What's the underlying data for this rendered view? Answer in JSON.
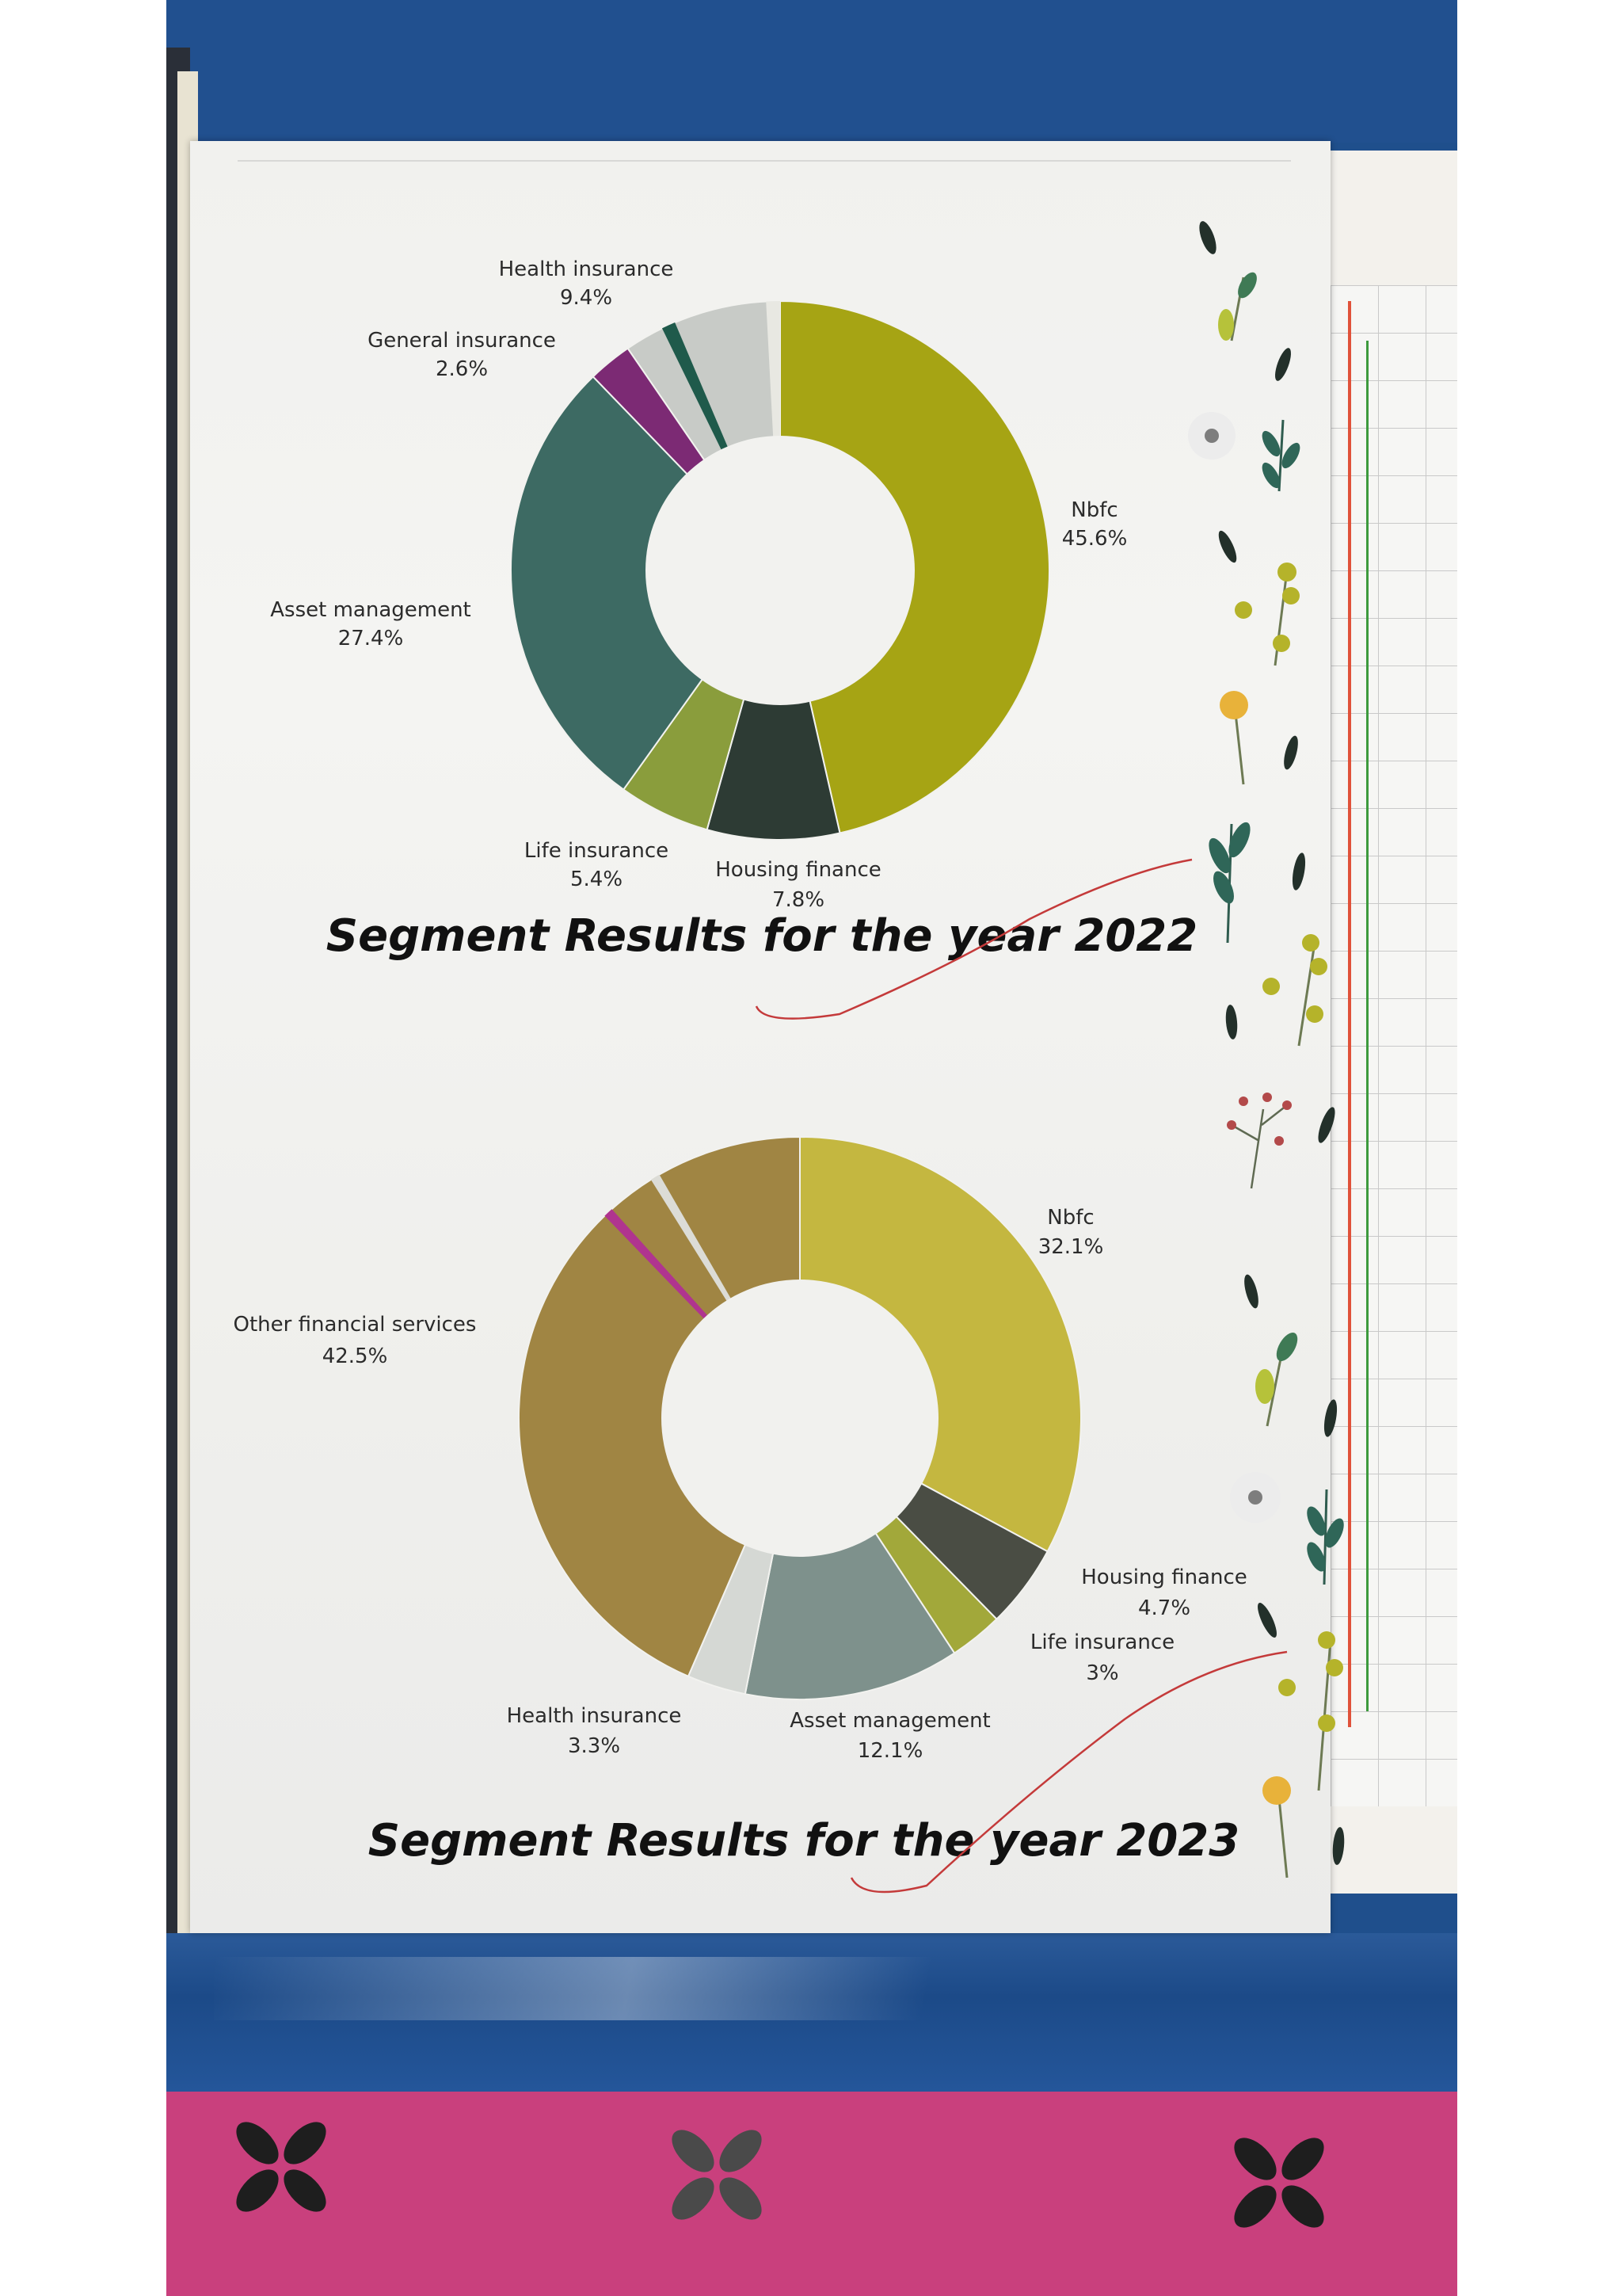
{
  "chart_data": [
    {
      "type": "pie",
      "title": "Segment Results for the year 2022",
      "categories": [
        "Nbfc",
        "Housing finance",
        "Life insurance",
        "Asset management",
        "General insurance",
        "Health insurance"
      ],
      "values": [
        45.6,
        7.8,
        5.4,
        27.4,
        2.6,
        9.4
      ],
      "value_labels": [
        "45.6%",
        "7.8%",
        "5.4%",
        "27.4%",
        "2.6%",
        "9.4%"
      ],
      "colors": [
        "#a6a414",
        "#2d3b34",
        "#8a9d3c",
        "#3d6a63",
        "#7c2a74",
        "#c8cbc7"
      ],
      "separator_colors": [
        "#1f5a4b",
        "#e8e8e2"
      ]
    },
    {
      "type": "pie",
      "title": "Segment Results for the year 2023",
      "categories": [
        "Nbfc",
        "Housing finance",
        "Life insurance",
        "Asset management",
        "Health insurance",
        "Other financial services"
      ],
      "values": [
        32.1,
        4.7,
        3,
        12.1,
        3.3,
        42.5
      ],
      "value_labels": [
        "32.1%",
        "4.7%",
        "3%",
        "12.1%",
        "3.3%",
        "42.5%"
      ],
      "colors": [
        "#c4b740",
        "#4a4d44",
        "#a2a83a",
        "#7e918c",
        "#d5d8d4",
        "#a08543"
      ],
      "separator_colors": [
        "#b0348f",
        "#dcdcd6"
      ]
    }
  ]
}
